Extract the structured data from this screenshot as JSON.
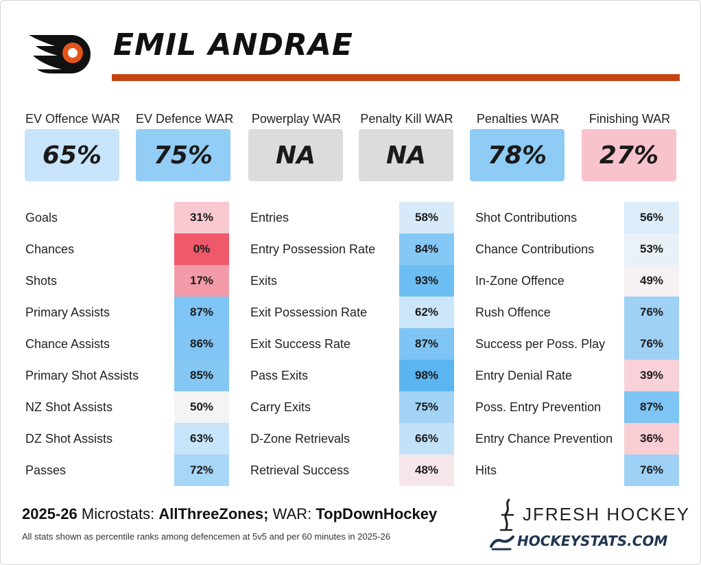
{
  "player_name": "EMIL ANDRAE",
  "team_logo_icon": "flyers-logo-icon",
  "colors": {
    "accent_orange": "#c4430f",
    "blue_strong": "#6cbdf2",
    "blue_mid": "#92cdf6",
    "blue_light": "#c7e4fa",
    "blue_faint": "#e1eff9",
    "neutral": "#f4f4f4",
    "red_faint": "#f7e6e9",
    "red_light": "#f8c9d0",
    "red_mid": "#f29aa7",
    "red_strong": "#ee5a6c",
    "na_grey": "#dcdcdc"
  },
  "war": [
    {
      "label": "EV Offence WAR",
      "value": "65%"
    },
    {
      "label": "EV Defence WAR",
      "value": "75%"
    },
    {
      "label": "Powerplay WAR",
      "value": "NA"
    },
    {
      "label": "Penalty Kill WAR",
      "value": "NA"
    },
    {
      "label": "Penalties WAR",
      "value": "78%"
    },
    {
      "label": "Finishing WAR",
      "value": "27%"
    }
  ],
  "columns": [
    [
      {
        "label": "Goals",
        "value": "31%"
      },
      {
        "label": "Chances",
        "value": "0%"
      },
      {
        "label": "Shots",
        "value": "17%"
      },
      {
        "label": "Primary Assists",
        "value": "87%"
      },
      {
        "label": "Chance Assists",
        "value": "86%"
      },
      {
        "label": "Primary Shot Assists",
        "value": "85%"
      },
      {
        "label": "NZ Shot Assists",
        "value": "50%"
      },
      {
        "label": "DZ Shot Assists",
        "value": "63%"
      },
      {
        "label": "Passes",
        "value": "72%"
      }
    ],
    [
      {
        "label": "Entries",
        "value": "58%"
      },
      {
        "label": "Entry Possession Rate",
        "value": "84%"
      },
      {
        "label": "Exits",
        "value": "93%"
      },
      {
        "label": "Exit Possession Rate",
        "value": "62%"
      },
      {
        "label": "Exit Success Rate",
        "value": "87%"
      },
      {
        "label": "Pass Exits",
        "value": "98%"
      },
      {
        "label": "Carry Exits",
        "value": "75%"
      },
      {
        "label": "D-Zone Retrievals",
        "value": "66%"
      },
      {
        "label": "Retrieval Success",
        "value": "48%"
      }
    ],
    [
      {
        "label": "Shot Contributions",
        "value": "56%"
      },
      {
        "label": "Chance Contributions",
        "value": "53%"
      },
      {
        "label": "In-Zone Offence",
        "value": "49%"
      },
      {
        "label": "Rush Offence",
        "value": "76%"
      },
      {
        "label": "Success per Poss. Play",
        "value": "76%"
      },
      {
        "label": "Entry Denial Rate",
        "value": "39%"
      },
      {
        "label": "Poss. Entry Prevention",
        "value": "87%"
      },
      {
        "label": "Entry Chance Prevention",
        "value": "36%"
      },
      {
        "label": "Hits",
        "value": "76%"
      }
    ]
  ],
  "footer": {
    "season": "2025-26",
    "microstats_label": "Microstats:",
    "microstats_source": "AllThreeZones;",
    "war_label": "WAR:",
    "war_source": "TopDownHockey",
    "note": "All stats shown as percentile ranks among defencemen at 5v5 and per 60 minutes in 2025-26"
  },
  "branding": {
    "jfresh": "JFRESH HOCKEY",
    "hockeystats": "HOCKEYSTATS.COM"
  }
}
